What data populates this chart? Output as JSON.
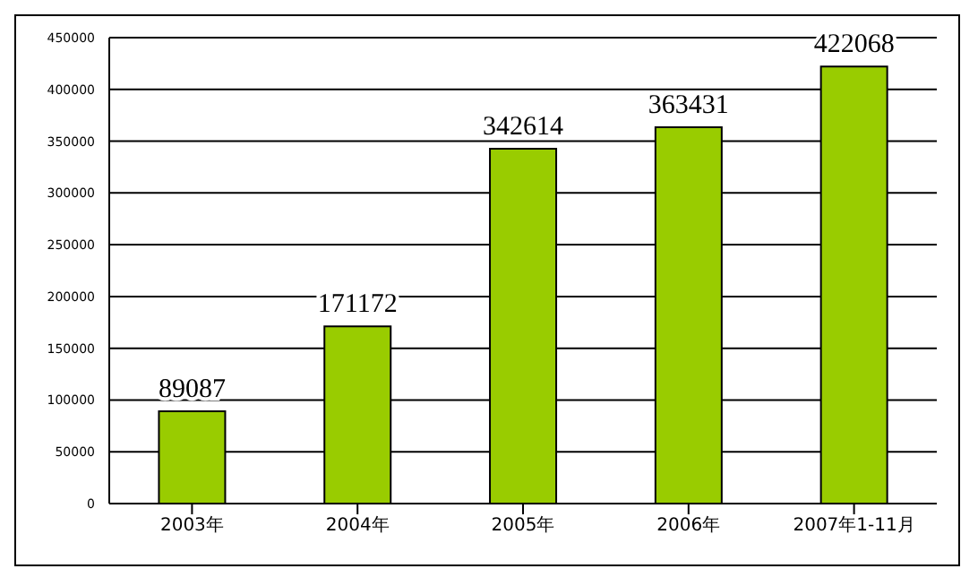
{
  "chart_data": {
    "type": "bar",
    "categories": [
      "2003年",
      "2004年",
      "2005年",
      "2006年",
      "2007年1-11月"
    ],
    "values": [
      89087,
      171172,
      342614,
      363431,
      422068
    ],
    "color": "#99cc00",
    "ylim": [
      0,
      450000
    ],
    "yticks": [
      0,
      50000,
      100000,
      150000,
      200000,
      250000,
      300000,
      350000,
      400000,
      450000
    ],
    "grid": "y",
    "data_labels": true
  }
}
